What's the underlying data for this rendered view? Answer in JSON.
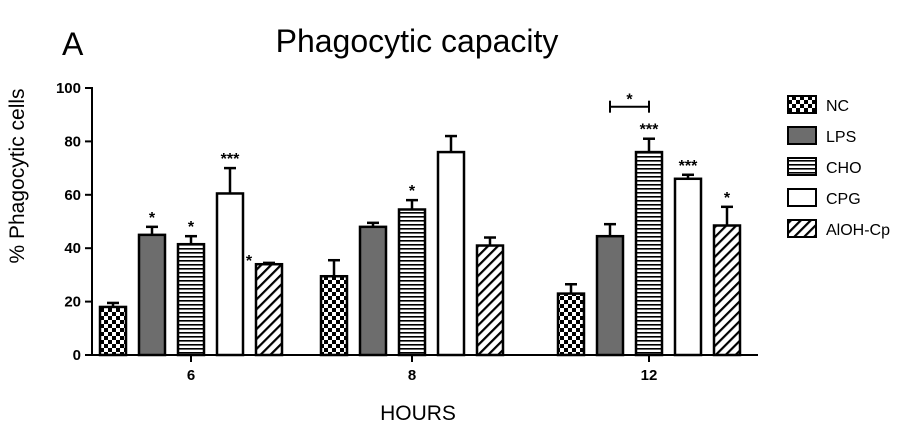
{
  "panel_label": "A",
  "chart_data": {
    "type": "bar",
    "title": "Phagocytic capacity",
    "xlabel": "HOURS",
    "ylabel": "% Phagocytic cells",
    "ylim": [
      0,
      100
    ],
    "yticks": [
      "0",
      "20",
      "40",
      "60",
      "80",
      "100"
    ],
    "categories": [
      "6",
      "8",
      "12"
    ],
    "legend_position": "right",
    "series": [
      {
        "name": "NC",
        "pattern": "checker",
        "values": [
          18,
          29.5,
          23
        ],
        "errors": [
          1.5,
          6,
          3.5
        ],
        "sig": [
          "",
          "",
          ""
        ]
      },
      {
        "name": "LPS",
        "pattern": "solid",
        "color": "#6d6d6d",
        "values": [
          45,
          48,
          44.5
        ],
        "errors": [
          3,
          1.5,
          4.5
        ],
        "sig": [
          "*",
          "",
          ""
        ]
      },
      {
        "name": "CHO",
        "pattern": "hlines",
        "values": [
          41.5,
          54.5,
          76
        ],
        "errors": [
          3,
          3.5,
          5
        ],
        "sig": [
          "*",
          "*",
          "***"
        ]
      },
      {
        "name": "CPG",
        "pattern": "empty",
        "values": [
          60.5,
          76,
          66
        ],
        "errors": [
          9.5,
          6,
          1.5
        ],
        "sig": [
          "***",
          "",
          "***"
        ]
      },
      {
        "name": "AlOH-Cp",
        "pattern": "diag",
        "values": [
          34,
          41,
          48.5
        ],
        "errors": [
          0.5,
          3,
          7
        ],
        "sig": [
          "",
          "",
          "*"
        ]
      }
    ],
    "extra_marks": [
      {
        "category": 0,
        "after_series": 3,
        "text": "*",
        "y": 37
      }
    ],
    "brackets": [
      {
        "category": 2,
        "from_series": 1,
        "to_series": 2,
        "y": 93,
        "text": "*"
      }
    ]
  }
}
